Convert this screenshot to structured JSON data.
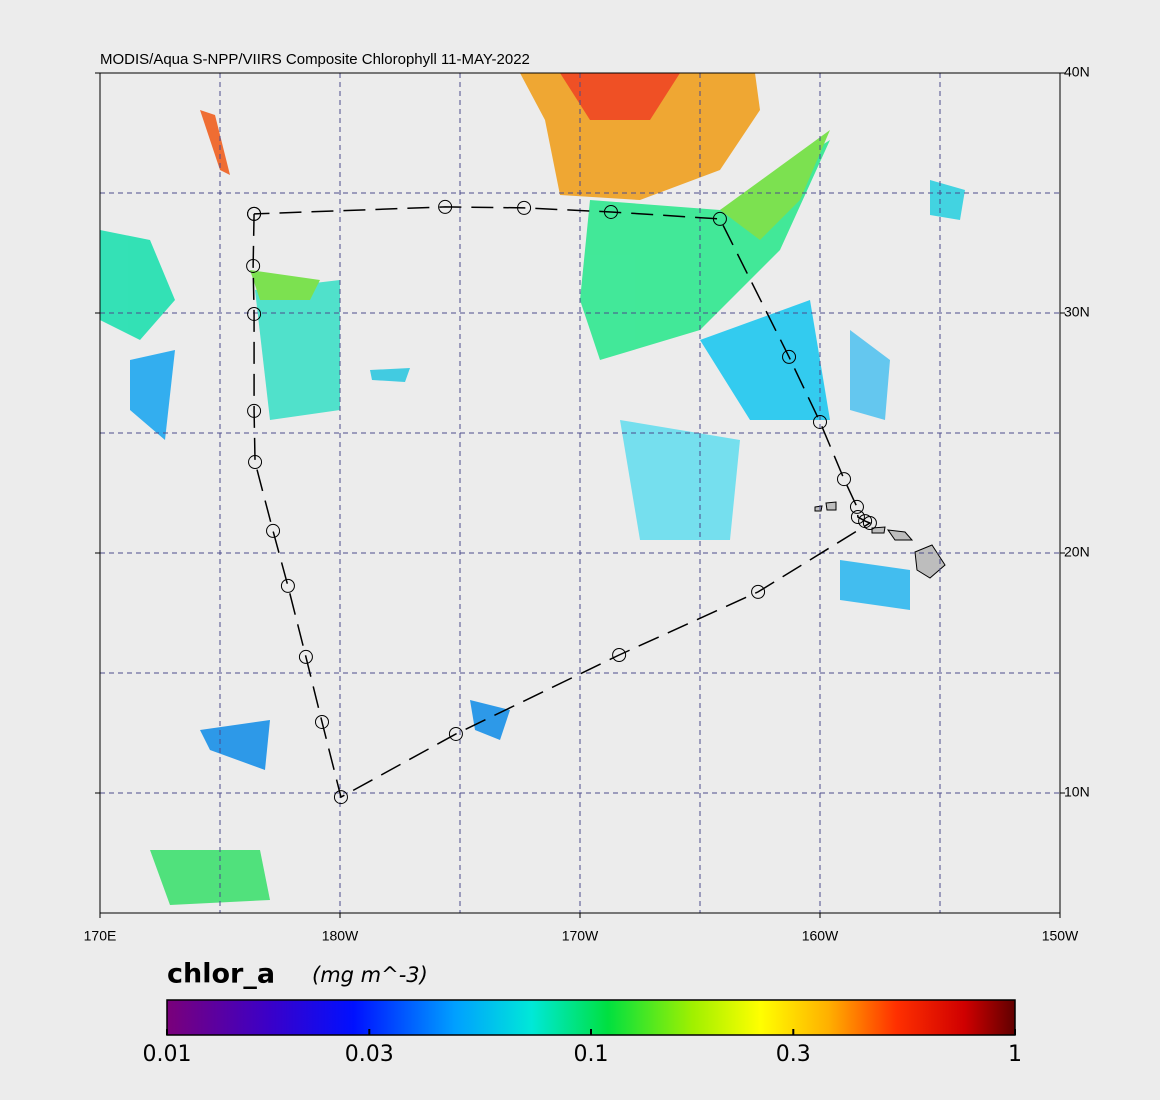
{
  "chart_data": {
    "type": "map",
    "title": "MODIS/Aqua S-NPP/VIIRS Composite Chlorophyll 11-MAY-2022",
    "xlim": [
      170,
      210
    ],
    "ylim": [
      5,
      40
    ],
    "xticks": [
      {
        "value": 170,
        "label": "170E"
      },
      {
        "value": 180,
        "label": "180W"
      },
      {
        "value": 190,
        "label": "170W"
      },
      {
        "value": 200,
        "label": "160W"
      },
      {
        "value": 210,
        "label": "150W"
      }
    ],
    "yticks": [
      {
        "value": 10,
        "label": "10N"
      },
      {
        "value": 20,
        "label": "20N"
      },
      {
        "value": 30,
        "label": "30N"
      },
      {
        "value": 40,
        "label": "40N"
      }
    ],
    "xgrid": [
      175,
      180,
      185,
      190,
      195,
      200,
      205
    ],
    "ygrid": [
      10,
      15,
      20,
      25,
      30,
      35
    ],
    "track": {
      "lon": [
        176.42,
        176.38,
        176.42,
        176.42,
        176.46,
        177.21,
        177.83,
        178.58,
        179.25,
        180.04,
        184.83,
        191.63,
        197.42,
        202.08,
        201.88,
        201.58,
        201.54,
        201.0,
        200.0,
        198.71,
        195.83,
        191.29,
        187.67,
        184.38,
        176.42
      ],
      "lat": [
        34.13,
        31.96,
        29.96,
        25.92,
        23.79,
        20.92,
        18.63,
        15.67,
        12.96,
        9.83,
        12.46,
        15.75,
        18.38,
        21.25,
        21.33,
        21.5,
        21.92,
        23.08,
        25.46,
        28.17,
        33.92,
        34.21,
        34.38,
        34.42,
        34.13
      ]
    },
    "colorbar": {
      "label": "chlor_a",
      "units": "(mg m^-3)",
      "lim": [
        0.01,
        1
      ],
      "log": true,
      "ticks": [
        0.01,
        0.03,
        0.1,
        0.3,
        1
      ]
    }
  }
}
